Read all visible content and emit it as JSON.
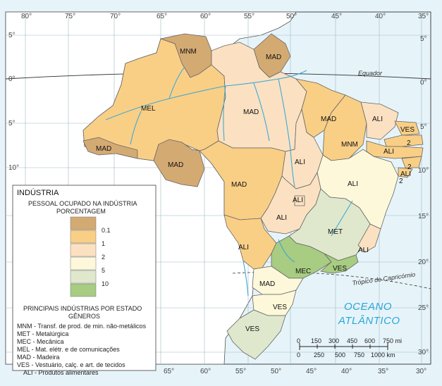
{
  "colors": {
    "ocean": "#e6f4fa",
    "land_outside": "#ffffff",
    "border": "#555555",
    "river": "#3fa9d6",
    "class_0_1": "#d4aa73",
    "class_1": "#f9cf86",
    "class_2": "#fbe1c2",
    "class_5": "#fdf8da",
    "class_10": "#dfe8cc",
    "class_top": "#a7cc82"
  },
  "lat_labels": [
    "5°",
    "0°",
    "5°",
    "10°",
    "15°",
    "20°",
    "25°",
    "30°"
  ],
  "lon_labels_top": [
    "80°",
    "75°",
    "70°",
    "65°",
    "60°",
    "55°",
    "50°",
    "45°",
    "40°",
    "35°"
  ],
  "lon_labels_bottom": [
    "65°",
    "60°",
    "55°",
    "50°",
    "45°",
    "40°",
    "35°",
    "30°"
  ],
  "lat_labels_right": [
    "5°",
    "0°",
    "5°",
    "10°",
    "15°",
    "20°",
    "25°",
    "30°"
  ],
  "line_labels": {
    "equator": "Equador",
    "tropic": "Trópico de Capricórnio"
  },
  "ocean_label": {
    "line1": "OCEANO",
    "line2": "ATLÂNTICO"
  },
  "regions": [
    {
      "code": "MNM",
      "class": "0.1"
    },
    {
      "code": "MAD",
      "class": "0.1"
    },
    {
      "code": "MEL",
      "class": "1"
    },
    {
      "code": "MAD",
      "class": "2"
    },
    {
      "code": "MAD",
      "class": "0.1"
    },
    {
      "code": "MAD",
      "class": "0.1"
    },
    {
      "code": "MAD",
      "class": "1"
    },
    {
      "code": "ALI",
      "class": "1"
    },
    {
      "code": "MAD",
      "class": "1"
    },
    {
      "code": "MNM",
      "class": "1"
    },
    {
      "code": "ALI",
      "class": "2"
    },
    {
      "code": "VES",
      "class": "1"
    },
    {
      "code": "ALI",
      "class": "2"
    },
    {
      "code": "ALI",
      "class": "1"
    },
    {
      "code": "ALI",
      "class": "5"
    },
    {
      "code": "ALI",
      "class": "2"
    },
    {
      "code": "ALI",
      "class": "2"
    },
    {
      "code": "ALI",
      "class": "2"
    },
    {
      "code": "MET",
      "class": "5"
    },
    {
      "code": "ALI",
      "class": "2"
    },
    {
      "code": "MEC",
      "class": "10"
    },
    {
      "code": "VES",
      "class": "10"
    },
    {
      "code": "MAD",
      "class": "5"
    },
    {
      "code": "VES",
      "class": "5"
    },
    {
      "code": "VES",
      "class": "5"
    },
    {
      "code": "2",
      "class": "1"
    },
    {
      "code": "2",
      "class": "1"
    },
    {
      "code": "2",
      "class": "1"
    }
  ],
  "legend": {
    "title": "INDÚSTRIA",
    "subtitle_line1": "PESSOAL OCUPADO NA INDÚSTRIA",
    "subtitle_line2": "PORCENTAGEM",
    "classes": [
      "0.1",
      "1",
      "2",
      "5",
      "10"
    ],
    "genre_title_line1": "PRINCIPAIS INDÚSTRIAS POR ESTADO",
    "genre_title_line2": "GÊNEROS",
    "genres": [
      "MNM - Transf. de prod. de min. não-metálicos",
      "MET - Metalúrgica",
      "MEC - Mecânica",
      "MEL - Mat. elétr. e de comunicações",
      "MAD - Madeira",
      "VES - Vestuário, calç. e art. de tecidos",
      "ALI - Produtos alimentares"
    ]
  },
  "scale": {
    "mi_ticks": [
      "0",
      "150",
      "300",
      "450",
      "600",
      "750 mi"
    ],
    "km_ticks": [
      "0",
      "250",
      "500",
      "750",
      "1000 km"
    ]
  }
}
